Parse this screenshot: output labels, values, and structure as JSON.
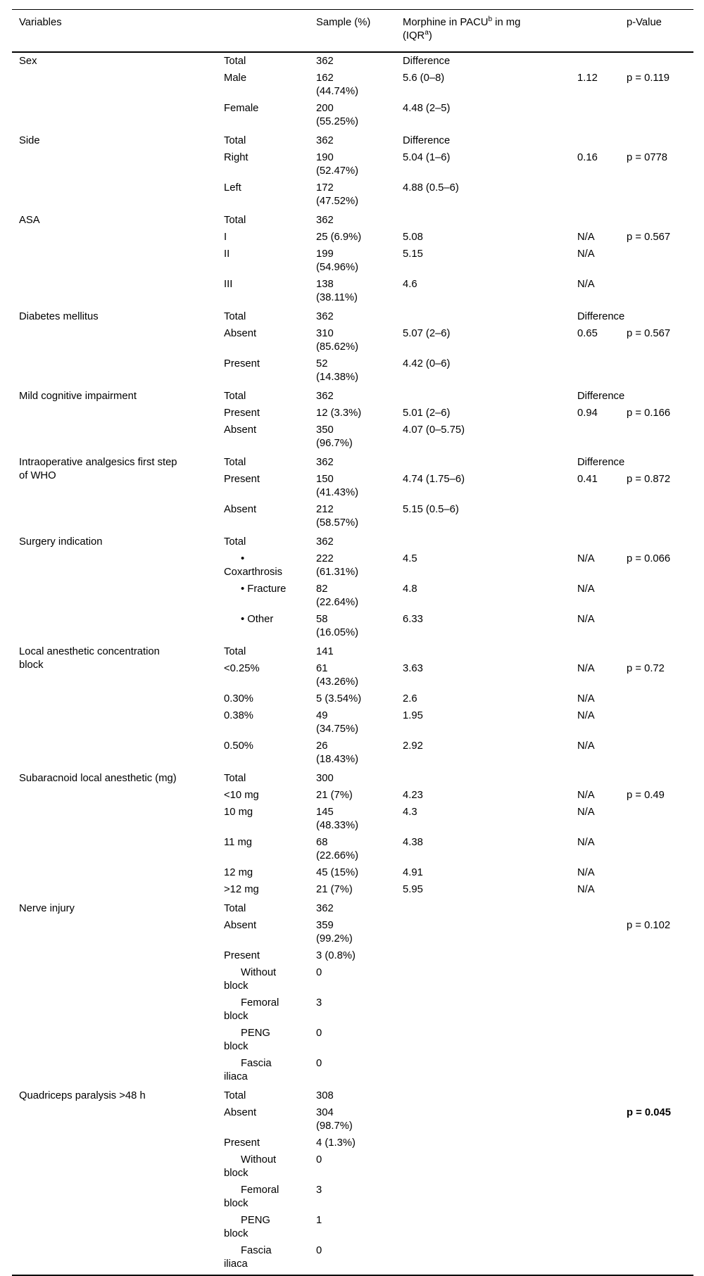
{
  "header": {
    "variables": "Variables",
    "subcategory": "",
    "sample": "Sample (%)",
    "morphine": {
      "line1_text": "Morphine in PACU",
      "sup_b": "b",
      "line1_rest": " in mg",
      "line2_text": "(IQR",
      "sup_a": "a",
      "line2_rest": ")"
    },
    "p_value": "p-Value"
  },
  "table": {
    "groups": [
      {
        "variable": "Sex",
        "rows": [
          {
            "sub": "Total",
            "sample": "362",
            "morphine": "Difference",
            "diff": "",
            "p": ""
          },
          {
            "sub": "Male",
            "sample": "162\n(44.74%)",
            "morphine": "5.6 (0–8)",
            "diff": "1.12",
            "p": "p = 0.119"
          },
          {
            "sub": "Female",
            "sample": "200\n(55.25%)",
            "morphine": "4.48 (2–5)",
            "diff": "",
            "p": ""
          }
        ]
      },
      {
        "variable": "Side",
        "rows": [
          {
            "sub": "Total",
            "sample": "362",
            "morphine": "Difference",
            "diff": "",
            "p": ""
          },
          {
            "sub": "Right",
            "sample": "190\n(52.47%)",
            "morphine": "5.04 (1–6)",
            "diff": "0.16",
            "p": "p = 0778"
          },
          {
            "sub": "Left",
            "sample": "172\n(47.52%)",
            "morphine": "4.88 (0.5–6)",
            "diff": "",
            "p": ""
          }
        ]
      },
      {
        "variable": "ASA",
        "rows": [
          {
            "sub": "Total",
            "sample": "362",
            "morphine": "",
            "diff": "",
            "p": ""
          },
          {
            "sub": "I",
            "sample": "25 (6.9%)",
            "morphine": "5.08",
            "diff": "N/A",
            "p": "p = 0.567"
          },
          {
            "sub": "II",
            "sample": "199\n(54.96%)",
            "morphine": "5.15",
            "diff": "N/A",
            "p": ""
          },
          {
            "sub": "III",
            "sample": "138\n(38.11%)",
            "morphine": "4.6",
            "diff": "N/A",
            "p": ""
          }
        ]
      },
      {
        "variable": "Diabetes mellitus",
        "rows": [
          {
            "sub": "Total",
            "sample": "362",
            "morphine": "",
            "diff": "Difference",
            "p": ""
          },
          {
            "sub": "Absent",
            "sample": "310\n(85.62%)",
            "morphine": "5.07 (2–6)",
            "diff": "0.65",
            "p": "p = 0.567"
          },
          {
            "sub": "Present",
            "sample": "52\n(14.38%)",
            "morphine": "4.42 (0–6)",
            "diff": "",
            "p": ""
          }
        ]
      },
      {
        "variable": "Mild cognitive impairment",
        "rows": [
          {
            "sub": "Total",
            "sample": "362",
            "morphine": "",
            "diff": "Difference",
            "p": ""
          },
          {
            "sub": "Present",
            "sample": "12 (3.3%)",
            "morphine": "5.01 (2–6)",
            "diff": "0.94",
            "p": "p = 0.166"
          },
          {
            "sub": "Absent",
            "sample": "350\n(96.7%)",
            "morphine": "4.07 (0–5.75)",
            "diff": "",
            "p": ""
          }
        ]
      },
      {
        "variable": "Intraoperative analgesics first step\nof WHO",
        "rows": [
          {
            "sub": "Total",
            "sample": "362",
            "morphine": "",
            "diff": "Difference",
            "p": ""
          },
          {
            "sub": "Present",
            "sample": "150\n(41.43%)",
            "morphine": "4.74 (1.75–6)",
            "diff": "0.41",
            "p": "p = 0.872"
          },
          {
            "sub": "Absent",
            "sample": "212\n(58.57%)",
            "morphine": "5.15 (0.5–6)",
            "diff": "",
            "p": ""
          }
        ]
      },
      {
        "variable": "Surgery indication",
        "rows": [
          {
            "sub": "Total",
            "sample": "362",
            "morphine": "",
            "diff": "",
            "p": ""
          },
          {
            "sub": "•\nCoxarthrosis",
            "indent": true,
            "sample": "222\n(61.31%)",
            "morphine": "4.5",
            "diff": "N/A",
            "p": "p = 0.066"
          },
          {
            "sub": "• Fracture",
            "indent": true,
            "sample": "82\n(22.64%)",
            "morphine": "4.8",
            "diff": "N/A",
            "p": ""
          },
          {
            "sub": "• Other",
            "indent": true,
            "sample": "58\n(16.05%)",
            "morphine": "6.33",
            "diff": "N/A",
            "p": ""
          }
        ]
      },
      {
        "variable": "Local anesthetic concentration\nblock",
        "rows": [
          {
            "sub": "Total",
            "sample": "141",
            "morphine": "",
            "diff": "",
            "p": ""
          },
          {
            "sub": "<0.25%",
            "sample": "61\n(43.26%)",
            "morphine": "3.63",
            "diff": "N/A",
            "p": "p = 0.72"
          },
          {
            "sub": "0.30%",
            "sample": "5 (3.54%)",
            "morphine": "2.6",
            "diff": "N/A",
            "p": ""
          },
          {
            "sub": "0.38%",
            "sample": "49\n(34.75%)",
            "morphine": "1.95",
            "diff": "N/A",
            "p": ""
          },
          {
            "sub": "0.50%",
            "sample": "26\n(18.43%)",
            "morphine": "2.92",
            "diff": "N/A",
            "p": ""
          }
        ]
      },
      {
        "variable": "Subaracnoid local anesthetic (mg)",
        "rows": [
          {
            "sub": "Total",
            "sample": "300",
            "morphine": "",
            "diff": "",
            "p": ""
          },
          {
            "sub": "<10 mg",
            "sample": "21 (7%)",
            "morphine": "4.23",
            "diff": "N/A",
            "p": "p = 0.49"
          },
          {
            "sub": "10 mg",
            "sample": "145\n(48.33%)",
            "morphine": "4.3",
            "diff": "N/A",
            "p": ""
          },
          {
            "sub": "11 mg",
            "sample": "68\n(22.66%)",
            "morphine": "4.38",
            "diff": "N/A",
            "p": ""
          },
          {
            "sub": "12 mg",
            "sample": "45 (15%)",
            "morphine": "4.91",
            "diff": "N/A",
            "p": ""
          },
          {
            "sub": ">12 mg",
            "sample": "21 (7%)",
            "morphine": "5.95",
            "diff": "N/A",
            "p": ""
          }
        ]
      },
      {
        "variable": "Nerve injury",
        "rows": [
          {
            "sub": "Total",
            "sample": "362",
            "morphine": "",
            "diff": "",
            "p": ""
          },
          {
            "sub": "Absent",
            "sample": "359\n(99.2%)",
            "morphine": "",
            "diff": "",
            "p": "p = 0.102"
          },
          {
            "sub": "Present",
            "sample": "3 (0.8%)",
            "morphine": "",
            "diff": "",
            "p": ""
          },
          {
            "sub": "Without\nblock",
            "indent": true,
            "sample": "0",
            "morphine": "",
            "diff": "",
            "p": ""
          },
          {
            "sub": "Femoral\nblock",
            "indent": true,
            "sample": "3",
            "morphine": "",
            "diff": "",
            "p": ""
          },
          {
            "sub": "PENG\nblock",
            "indent": true,
            "sample": "0",
            "morphine": "",
            "diff": "",
            "p": ""
          },
          {
            "sub": "Fascia\niliaca",
            "indent": true,
            "sample": "0",
            "morphine": "",
            "diff": "",
            "p": ""
          }
        ]
      },
      {
        "variable": "Quadriceps paralysis >48 h",
        "rows": [
          {
            "sub": "Total",
            "sample": "308",
            "morphine": "",
            "diff": "",
            "p": ""
          },
          {
            "sub": "Absent",
            "sample": "304\n(98.7%)",
            "morphine": "",
            "diff": "",
            "p": "p = 0.045",
            "p_bold": true
          },
          {
            "sub": "Present",
            "sample": "4 (1.3%)",
            "morphine": "",
            "diff": "",
            "p": ""
          },
          {
            "sub": "Without\nblock",
            "indent": true,
            "sample": "0",
            "morphine": "",
            "diff": "",
            "p": ""
          },
          {
            "sub": "Femoral\nblock",
            "indent": true,
            "sample": "3",
            "morphine": "",
            "diff": "",
            "p": ""
          },
          {
            "sub": "PENG\nblock",
            "indent": true,
            "sample": "1",
            "morphine": "",
            "diff": "",
            "p": ""
          },
          {
            "sub": "Fascia\niliaca",
            "indent": true,
            "sample": "0",
            "morphine": "",
            "diff": "",
            "p": ""
          }
        ]
      }
    ]
  }
}
